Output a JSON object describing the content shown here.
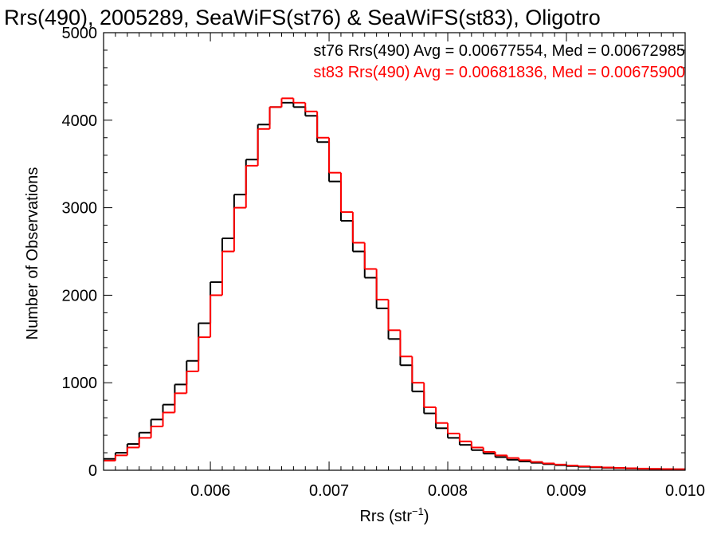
{
  "chart_data": {
    "type": "line",
    "title": "Rrs(490), 2005289, SeaWiFS(st76) & SeaWiFS(st83), Oligotro",
    "xlabel": "Rrs (str",
    "xlabel_superscript": "−1",
    "xlabel_suffix": ")",
    "ylabel": "Number of Observations",
    "xlim": [
      0.0051,
      0.01
    ],
    "ylim": [
      0,
      5000
    ],
    "x_ticks": [
      0.006,
      0.007,
      0.008,
      0.009,
      0.01
    ],
    "x_tick_labels": [
      "0.006",
      "0.007",
      "0.008",
      "0.009",
      "0.010"
    ],
    "y_ticks": [
      0,
      1000,
      2000,
      3000,
      4000,
      5000
    ],
    "y_tick_labels": [
      "0",
      "1000",
      "2000",
      "3000",
      "4000",
      "5000"
    ],
    "grid": false,
    "legend_position": "top-right",
    "legend": [
      {
        "text": "st76 Rrs(490) Avg = 0.00677554, Med = 0.00672985",
        "color": "#000000"
      },
      {
        "text": "st83 Rrs(490) Avg = 0.00681836, Med = 0.00675900",
        "color": "#ff0000"
      }
    ],
    "series": [
      {
        "color": "#000000",
        "style": "step",
        "x": [
          0.0051,
          0.0052,
          0.0053,
          0.0054,
          0.0055,
          0.0056,
          0.0057,
          0.0058,
          0.0059,
          0.006,
          0.0061,
          0.0062,
          0.0063,
          0.0064,
          0.0065,
          0.0066,
          0.0067,
          0.0068,
          0.0069,
          0.007,
          0.0071,
          0.0072,
          0.0073,
          0.0074,
          0.0075,
          0.0076,
          0.0077,
          0.0078,
          0.0079,
          0.008,
          0.0081,
          0.0082,
          0.0083,
          0.0084,
          0.0085,
          0.0086,
          0.0087,
          0.0088,
          0.0089,
          0.009,
          0.0091,
          0.0092,
          0.0093,
          0.0094,
          0.0095,
          0.0096,
          0.0097,
          0.0098,
          0.0099,
          0.01
        ],
        "values": [
          130,
          200,
          300,
          430,
          580,
          750,
          980,
          1250,
          1680,
          2150,
          2650,
          3150,
          3550,
          3950,
          4150,
          4200,
          4150,
          4050,
          3750,
          3300,
          2850,
          2500,
          2200,
          1850,
          1500,
          1200,
          900,
          650,
          480,
          370,
          290,
          230,
          190,
          150,
          120,
          100,
          85,
          70,
          58,
          48,
          40,
          34,
          28,
          24,
          20,
          17,
          15,
          13,
          11,
          10
        ]
      },
      {
        "color": "#ff0000",
        "style": "step",
        "x": [
          0.0051,
          0.0052,
          0.0053,
          0.0054,
          0.0055,
          0.0056,
          0.0057,
          0.0058,
          0.0059,
          0.006,
          0.0061,
          0.0062,
          0.0063,
          0.0064,
          0.0065,
          0.0066,
          0.0067,
          0.0068,
          0.0069,
          0.007,
          0.0071,
          0.0072,
          0.0073,
          0.0074,
          0.0075,
          0.0076,
          0.0077,
          0.0078,
          0.0079,
          0.008,
          0.0081,
          0.0082,
          0.0083,
          0.0084,
          0.0085,
          0.0086,
          0.0087,
          0.0088,
          0.0089,
          0.009,
          0.0091,
          0.0092,
          0.0093,
          0.0094,
          0.0095,
          0.0096,
          0.0097,
          0.0098,
          0.0099,
          0.01
        ],
        "values": [
          110,
          170,
          260,
          370,
          500,
          660,
          880,
          1130,
          1520,
          2000,
          2500,
          3000,
          3480,
          3900,
          4150,
          4250,
          4200,
          4100,
          3800,
          3400,
          2950,
          2600,
          2300,
          1950,
          1600,
          1300,
          1000,
          720,
          540,
          420,
          330,
          260,
          210,
          170,
          140,
          115,
          95,
          78,
          65,
          54,
          45,
          38,
          32,
          27,
          23,
          19,
          16,
          14,
          12,
          11
        ]
      }
    ]
  }
}
